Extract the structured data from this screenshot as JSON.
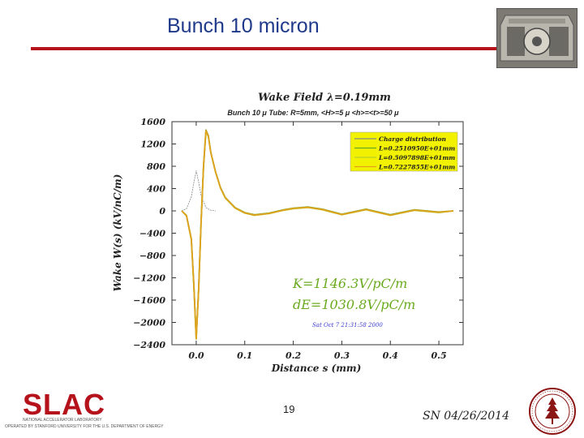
{
  "slide": {
    "title": "Bunch 10 micron",
    "page_number": "19",
    "footer_date": "SN 04/26/2014",
    "accent_color": "#b5121b",
    "title_color": "#1f3a8a"
  },
  "logo": {
    "slac_text": "SLAC",
    "slac_line1": "NATIONAL ACCELERATOR LABORATORY",
    "slac_line2": "OPERATED BY STANFORD UNIVERSITY FOR THE U.S. DEPARTMENT OF ENERGY"
  },
  "chart_data": {
    "type": "line",
    "title": "Wake Field λ=0.19mm",
    "subtitle": "Bunch 10 μ  Tube: R=5mm, <H>=5 μ <h>=<t>=50 μ",
    "xlabel": "Distance s (mm)",
    "ylabel": "Wake W(s) (kV/nC/m)",
    "xlim": [
      -0.05,
      0.55
    ],
    "ylim": [
      -2400,
      1600
    ],
    "xticks": [
      "0.0",
      "0.1",
      "0.2",
      "0.3",
      "0.4",
      "0.5"
    ],
    "yticks": [
      "1600",
      "1200",
      "800",
      "400",
      "0",
      "−400",
      "−800",
      "−1200",
      "−1600",
      "−2000",
      "−2400"
    ],
    "legend_position": "top-right",
    "legend_background": "#f2f200",
    "grid": false,
    "annotations": [
      "K=1146.3V/pC/m",
      "dE=1030.8V/pC/m",
      "Sat Oct  7 21:31:58 2000"
    ],
    "series": [
      {
        "name": "Charge distribution",
        "color": "#888888",
        "x": [
          -0.03,
          -0.02,
          -0.01,
          -0.005,
          0.0,
          0.005,
          0.01,
          0.02,
          0.03,
          0.04
        ],
        "y": [
          0,
          40,
          250,
          500,
          720,
          520,
          280,
          60,
          10,
          0
        ]
      },
      {
        "name": "L=0.2510950E+01mm",
        "color": "#6aaa1e",
        "x": [
          -0.03,
          -0.02,
          -0.01,
          -0.005,
          0.0,
          0.005,
          0.01,
          0.015,
          0.02,
          0.025,
          0.03,
          0.04,
          0.05,
          0.06,
          0.08,
          0.1,
          0.12,
          0.15,
          0.18,
          0.2,
          0.23,
          0.26,
          0.3,
          0.35,
          0.4,
          0.45,
          0.5,
          0.53
        ],
        "y": [
          0,
          -80,
          -500,
          -1300,
          -2280,
          -1400,
          -200,
          800,
          1450,
          1350,
          1050,
          700,
          420,
          240,
          60,
          -30,
          -70,
          -40,
          20,
          50,
          70,
          30,
          -60,
          30,
          -70,
          20,
          -20,
          0
        ]
      },
      {
        "name": "L=0.5097898E+01mm",
        "color": "#b6cf2a",
        "x": [
          -0.03,
          -0.02,
          -0.01,
          -0.005,
          0.0,
          0.005,
          0.01,
          0.015,
          0.02,
          0.025,
          0.03,
          0.04,
          0.05,
          0.06,
          0.08,
          0.1,
          0.12,
          0.15,
          0.18,
          0.2,
          0.23,
          0.26,
          0.3,
          0.35,
          0.4,
          0.45,
          0.5,
          0.53
        ],
        "y": [
          0,
          -90,
          -520,
          -1320,
          -2300,
          -1420,
          -220,
          780,
          1430,
          1330,
          1040,
          690,
          410,
          230,
          50,
          -40,
          -80,
          -50,
          10,
          40,
          60,
          20,
          -70,
          20,
          -80,
          10,
          -30,
          0
        ]
      },
      {
        "name": "L=0.7227855E+01mm",
        "color": "#e0a020",
        "x": [
          -0.03,
          -0.02,
          -0.01,
          -0.005,
          0.0,
          0.005,
          0.01,
          0.015,
          0.02,
          0.025,
          0.03,
          0.04,
          0.05,
          0.06,
          0.08,
          0.1,
          0.12,
          0.15,
          0.18,
          0.2,
          0.23,
          0.26,
          0.3,
          0.35,
          0.4,
          0.45,
          0.5,
          0.53
        ],
        "y": [
          0,
          -85,
          -510,
          -1310,
          -2290,
          -1410,
          -210,
          790,
          1440,
          1340,
          1045,
          695,
          415,
          235,
          55,
          -35,
          -75,
          -45,
          15,
          45,
          65,
          25,
          -65,
          25,
          -75,
          15,
          -25,
          0
        ]
      }
    ]
  }
}
